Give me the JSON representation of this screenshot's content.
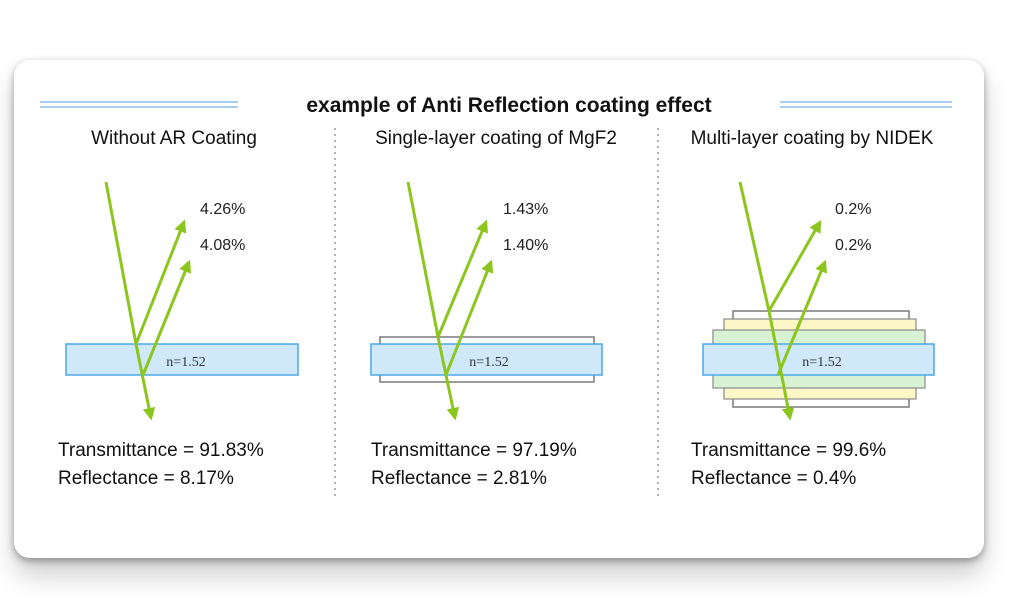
{
  "title": "example of Anti Reflection coating effect",
  "colors": {
    "ray": "#8cc51e",
    "glass_fill": "#cfe9fb",
    "glass_stroke": "#4aa8e8",
    "coating_yellow": "#fdf6c6",
    "coating_green": "#d7f3d4",
    "title_rule": "#a8cff0"
  },
  "panels": [
    {
      "heading": "Without AR Coating",
      "reflect_1": "4.26%",
      "reflect_2": "4.08%",
      "index_label": "n=1.52",
      "transmittance": "Transmittance = 91.83%",
      "reflectance": "Reflectance = 8.17%",
      "coating": "none"
    },
    {
      "heading": "Single-layer coating of MgF2",
      "reflect_1": "1.43%",
      "reflect_2": "1.40%",
      "index_label": "n=1.52",
      "transmittance": "Transmittance = 97.19%",
      "reflectance": "Reflectance = 2.81%",
      "coating": "single-layer"
    },
    {
      "heading": "Multi-layer coating by NIDEK",
      "reflect_1": "0.2%",
      "reflect_2": "0.2%",
      "index_label": "n=1.52",
      "transmittance": "Transmittance = 99.6%",
      "reflectance": "Reflectance = 0.4%",
      "coating": "multi-layer"
    }
  ]
}
